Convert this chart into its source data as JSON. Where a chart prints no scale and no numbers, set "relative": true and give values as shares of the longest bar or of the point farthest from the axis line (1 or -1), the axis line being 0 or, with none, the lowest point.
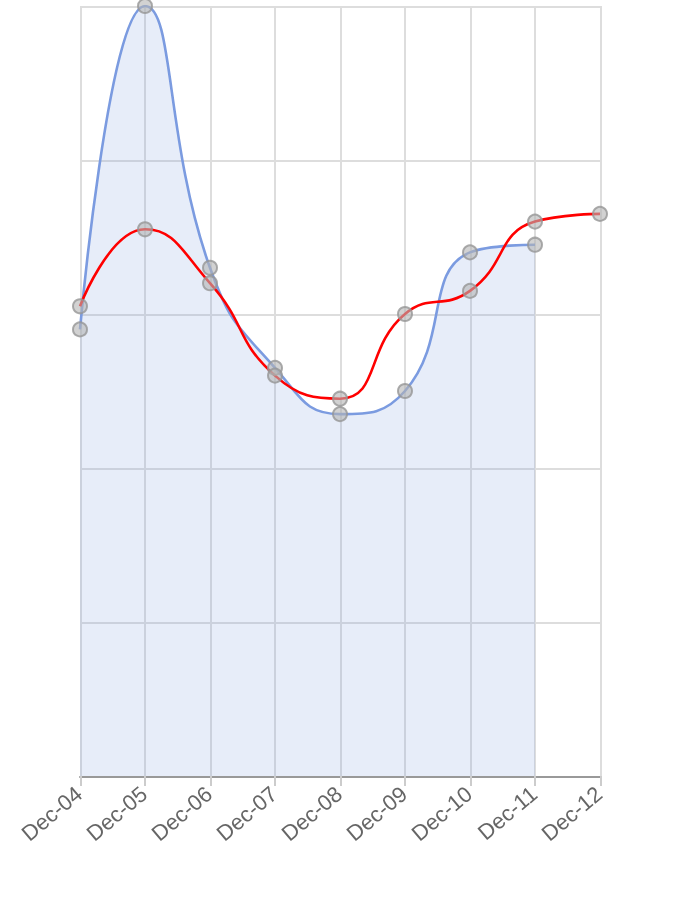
{
  "chart_data": {
    "type": "area",
    "relative": true,
    "grid": true,
    "marker": "circle",
    "line_style": "solid",
    "categories": [
      "Dec-04",
      "Dec-05",
      "Dec-06",
      "Dec-07",
      "Dec-08",
      "Dec-09",
      "Dec-10",
      "Dec-11",
      "Dec-12"
    ],
    "series": [
      {
        "type": "area",
        "color": "#7b9be0",
        "values": [
          0.58,
          1,
          0.66,
          0.53,
          0.47,
          0.5,
          0.68,
          0.69,
          null
        ]
      },
      {
        "type": "line",
        "color": "#ff0000",
        "values": [
          0.61,
          0.71,
          0.64,
          0.52,
          0.49,
          0.6,
          0.63,
          0.72,
          0.73
        ]
      }
    ]
  }
}
